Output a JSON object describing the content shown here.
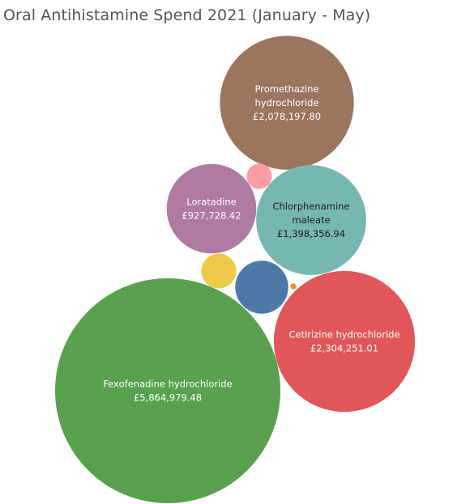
{
  "title": "Oral Antihistamine Spend 2021 (January - May)",
  "chart_data": {
    "type": "bubble",
    "title": "Oral Antihistamine Spend 2021 (January - May)",
    "series": [
      {
        "name": "Fexofenadine hydrochloride",
        "label_lines": [
          "Fexofenadine hydrochloride"
        ],
        "value_label": "£5,864,979.48",
        "value": 5864979.48,
        "color": "#59a14f",
        "label_color": "#ffffff"
      },
      {
        "name": "Cetirizine hydrochloride",
        "label_lines": [
          "Cetirizine hydrochloride"
        ],
        "value_label": "£2,304,251.01",
        "value": 2304251.01,
        "color": "#e15759",
        "label_color": "#ffffff"
      },
      {
        "name": "Promethazine hydrochloride",
        "label_lines": [
          "Promethazine",
          "hydrochloride"
        ],
        "value_label": "£2,078,197.80",
        "value": 2078197.8,
        "color": "#9c755f",
        "label_color": "#ffffff"
      },
      {
        "name": "Chlorphenamine maleate",
        "label_lines": [
          "Chlorphenamine",
          "maleate"
        ],
        "value_label": "£1,398,356.94",
        "value": 1398356.94,
        "color": "#76b7b2",
        "label_color": "#222222"
      },
      {
        "name": "Loratadine",
        "label_lines": [
          "Loratadine"
        ],
        "value_label": "£927,728.42",
        "value": 927728.42,
        "color": "#b07aa1",
        "label_color": "#ffffff"
      },
      {
        "name": "",
        "label_lines": [],
        "value_label": "",
        "value": 325000,
        "color": "#4e79a7",
        "label_color": "#ffffff"
      },
      {
        "name": "",
        "label_lines": [],
        "value_label": "",
        "value": 140000,
        "color": "#edc948",
        "label_color": "#222222"
      },
      {
        "name": "",
        "label_lines": [],
        "value_label": "",
        "value": 74000,
        "color": "#ff9da7",
        "label_color": "#222222"
      },
      {
        "name": "",
        "label_lines": [],
        "value_label": "",
        "value": 4200,
        "color": "#f28e2b",
        "label_color": "#222222"
      }
    ]
  }
}
